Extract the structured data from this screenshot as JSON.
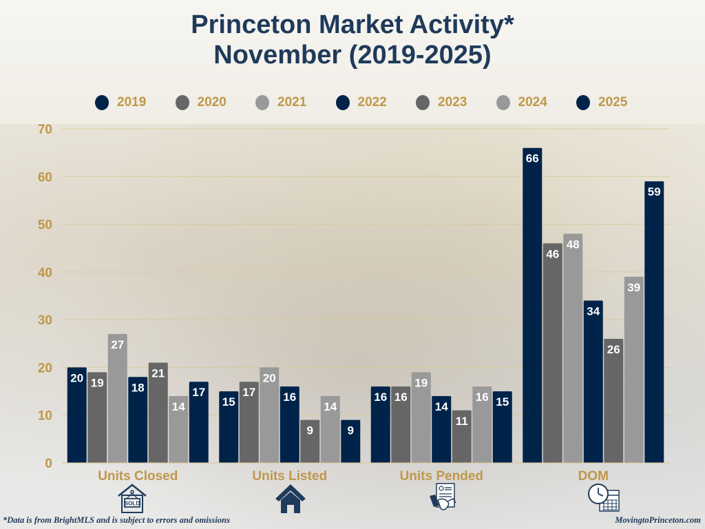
{
  "colors": {
    "navy": "#00234a",
    "dark_gray": "#666666",
    "light_gray": "#999999",
    "gold": "#c0974a",
    "title": "#1f3a5a"
  },
  "footer": {
    "disclaimer": "*Data is from BrightMLS and is subject to errors and omissions",
    "website": "MovingtoPrinceton.com"
  },
  "icons": [
    "sold-sign-icon",
    "house-icon",
    "contract-handshake-icon",
    "clock-calendar-icon"
  ],
  "chart_data": {
    "type": "bar",
    "title": "Princeton Market Activity*",
    "subtitle": "November (2019-2025)",
    "xlabel": "",
    "ylabel": "",
    "categories": [
      "Units Closed",
      "Units Listed",
      "Units Pended",
      "DOM"
    ],
    "series": [
      {
        "name": "2019",
        "color": "#00234a",
        "values": [
          20,
          15,
          16,
          66
        ]
      },
      {
        "name": "2020",
        "color": "#666666",
        "values": [
          19,
          17,
          16,
          46
        ]
      },
      {
        "name": "2021",
        "color": "#999999",
        "values": [
          27,
          20,
          19,
          48
        ]
      },
      {
        "name": "2022",
        "color": "#00234a",
        "values": [
          18,
          16,
          14,
          34
        ]
      },
      {
        "name": "2023",
        "color": "#666666",
        "values": [
          21,
          9,
          11,
          26
        ]
      },
      {
        "name": "2024",
        "color": "#999999",
        "values": [
          14,
          14,
          16,
          39
        ]
      },
      {
        "name": "2025",
        "color": "#00234a",
        "values": [
          17,
          9,
          15,
          59
        ]
      }
    ],
    "ylim": [
      0,
      70
    ],
    "yticks": [
      0,
      10,
      20,
      30,
      40,
      50,
      60,
      70
    ],
    "grid": true,
    "legend": "top-center",
    "data_labels": true
  }
}
